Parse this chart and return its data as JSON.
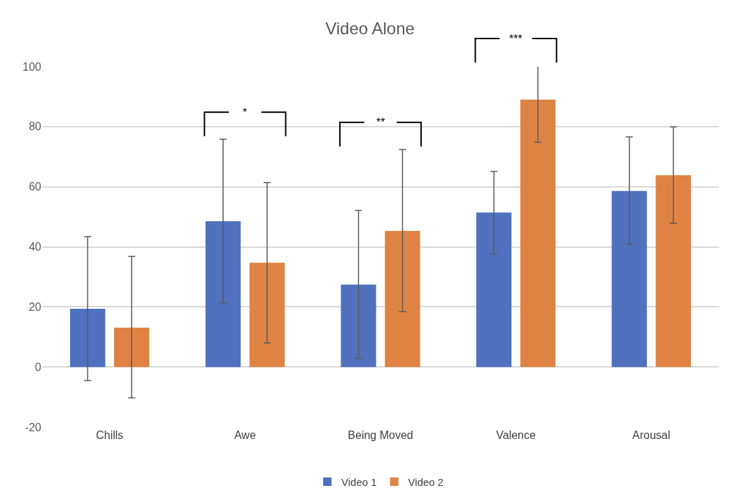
{
  "chart_data": {
    "type": "bar",
    "title": "Video Alone",
    "categories": [
      "Chills",
      "Awe",
      "Being Moved",
      "Valence",
      "Arousal"
    ],
    "series": [
      {
        "name": "Video 1",
        "color": "#4f71be",
        "values": [
          19.4,
          48.5,
          27.4,
          51.4,
          58.6
        ],
        "errors": [
          [
            -4.5,
            43.4
          ],
          [
            21.3,
            75.8
          ],
          [
            2.8,
            52.1
          ],
          [
            37.6,
            65.1
          ],
          [
            40.8,
            76.6
          ]
        ]
      },
      {
        "name": "Video 2",
        "color": "#de8344",
        "values": [
          13.1,
          34.7,
          45.3,
          89.0,
          63.8
        ],
        "errors": [
          [
            -10.3,
            36.8
          ],
          [
            8.0,
            61.4
          ],
          [
            18.4,
            72.4
          ],
          [
            74.8,
            100.3
          ],
          [
            47.8,
            79.9
          ]
        ]
      }
    ],
    "ylim": [
      -20,
      100
    ],
    "yticks": [
      -20,
      0,
      20,
      40,
      60,
      80,
      100
    ],
    "grid": "y",
    "legend": "bottom",
    "annotations": [
      "*",
      "**",
      "***"
    ]
  }
}
